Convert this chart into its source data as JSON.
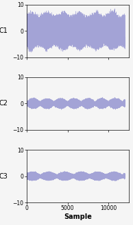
{
  "n_samples": 12000,
  "ylim": [
    -10,
    10
  ],
  "yticks": [
    -10,
    0,
    10
  ],
  "xlim": [
    0,
    12500
  ],
  "xticks": [
    0,
    5000,
    10000
  ],
  "xlabel": "Sample",
  "channel_labels": [
    "C1",
    "C2",
    "C3"
  ],
  "line_color": "#8888cc",
  "line_alpha": 0.75,
  "line_width": 0.3,
  "bg_color": "#f5f5f5",
  "figsize": [
    1.94,
    3.29
  ],
  "dpi": 100,
  "c1_amp": 5.5,
  "c1_carrier_freq": 0.08,
  "c1_noise": 1.2,
  "c2_amp": 1.8,
  "c2_carrier_freq": 0.12,
  "c2_noise": 0.5,
  "c3_amp": 1.5,
  "c3_carrier_freq": 0.15,
  "c3_noise": 0.4
}
